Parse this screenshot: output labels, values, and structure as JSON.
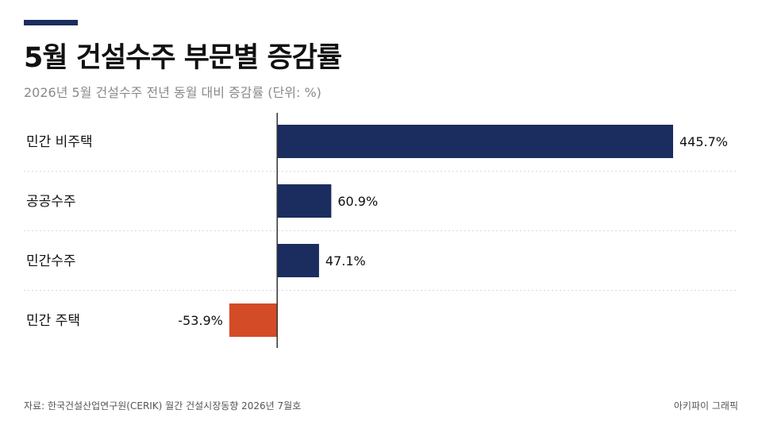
{
  "chart_data": {
    "type": "bar",
    "orientation": "horizontal",
    "title": "5월 건설수주 부문별 증감률",
    "subtitle": "2026년 5월 건설수주 전년 동월 대비 증감률 (단위: %)",
    "categories": [
      "민간 비주택",
      "공공수주",
      "민간수주",
      "민간 주택"
    ],
    "values": [
      445.7,
      60.9,
      47.1,
      -53.9
    ],
    "value_labels": [
      "445.7%",
      "60.9%",
      "47.1%",
      "-53.9%"
    ],
    "xlim": [
      -111,
      445.7
    ],
    "grid": false,
    "legend": "none"
  },
  "colors": {
    "positive": "#1b2d5e",
    "negative": "#d44b27",
    "accent": "#1b2d5e"
  },
  "footer": {
    "source": "자료: 한국건설산업연구원(CERIK) 월간 건설시장동향 2026년 7월호",
    "credit": "아키파이 그래픽"
  }
}
